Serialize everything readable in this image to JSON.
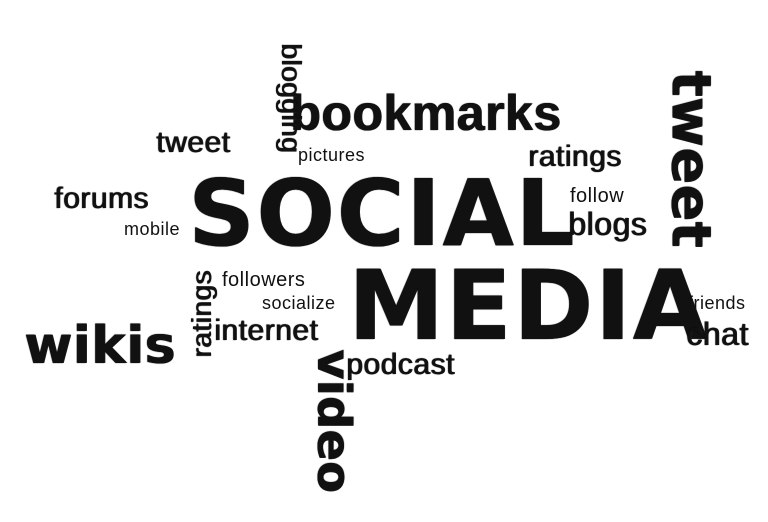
{
  "words": {
    "social": "SOCIAL",
    "media": "MEDIA",
    "bookmarks": "bookmarks",
    "blogging": "blogging",
    "tweet_left": "tweet",
    "tweet_right": "tweet",
    "pictures": "pictures",
    "ratings_top": "ratings",
    "forums": "forums",
    "mobile": "mobile",
    "follow": "follow",
    "blogs": "blogs",
    "followers": "followers",
    "socialize": "socialize",
    "ratings_vertical": "ratings",
    "wikis": "wikis",
    "internet": "internet",
    "podcast": "podcast",
    "video": "video",
    "friends": "friends",
    "chat": "chat"
  },
  "colors": {
    "ink": "#111111",
    "background": "#ffffff"
  }
}
